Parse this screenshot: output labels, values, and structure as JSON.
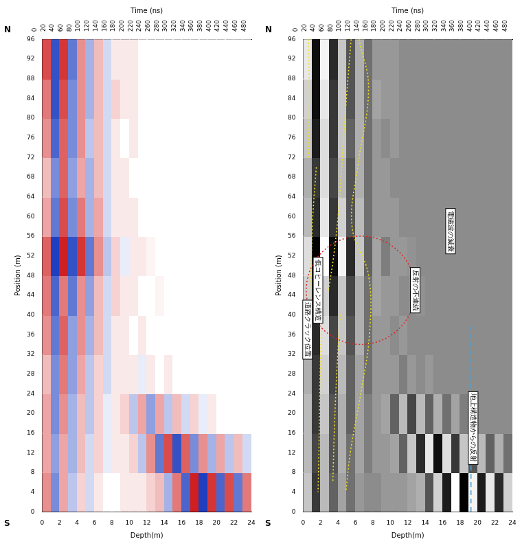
{
  "chart_data": [
    {
      "type": "heatmap",
      "x_label": "Time (ns)",
      "y_label": "Position (m)",
      "x2_label": "Depth(m)",
      "top_left": "N",
      "bottom_left": "S",
      "xlim": [
        0,
        480
      ],
      "xticks": [
        0,
        20,
        40,
        60,
        80,
        100,
        120,
        140,
        160,
        180,
        200,
        220,
        240,
        260,
        280,
        300,
        320,
        340,
        360,
        380,
        400,
        420,
        440,
        460,
        480
      ],
      "x2lim": [
        0,
        24
      ],
      "x2ticks": [
        0,
        2,
        4,
        6,
        8,
        10,
        12,
        14,
        16,
        18,
        20,
        22,
        24
      ],
      "ylim": [
        0,
        96
      ],
      "yticks": [
        0,
        4,
        8,
        12,
        16,
        20,
        24,
        28,
        32,
        36,
        40,
        44,
        48,
        52,
        56,
        60,
        64,
        68,
        72,
        76,
        80,
        84,
        88,
        92,
        96
      ],
      "grid": false,
      "time_edges": [
        0,
        20,
        40,
        60,
        80,
        100,
        120,
        140,
        160,
        180,
        200,
        220,
        240,
        260,
        280,
        300,
        320,
        340,
        360,
        380,
        400,
        420,
        440,
        460,
        480
      ],
      "position_edges": [
        0,
        8,
        16,
        24,
        32,
        40,
        48,
        56,
        64,
        72,
        80,
        88,
        96
      ],
      "color_range": [
        -1,
        1
      ],
      "colors": [
        "#1f3fbf",
        "#ffffff",
        "#d11f1f"
      ],
      "cells": [
        [
          0.5,
          -0.6,
          0.4,
          -0.3,
          0.2,
          -0.2,
          0.1,
          0,
          0,
          0.1,
          0.1,
          0.1,
          0.2,
          0.3,
          -0.4,
          0.6,
          -0.8,
          1,
          -1,
          0.9,
          -0.8,
          0.8,
          -0.7,
          0.6
        ],
        [
          0.4,
          -0.5,
          0.4,
          -0.4,
          0.3,
          -0.2,
          0.2,
          -0.1,
          0.1,
          0.1,
          0.2,
          -0.3,
          0.5,
          -0.7,
          0.8,
          -0.9,
          0.7,
          -0.6,
          0.5,
          -0.4,
          0.4,
          -0.3,
          0.3,
          -0.2
        ],
        [
          0.4,
          -0.6,
          0.5,
          -0.4,
          0.3,
          -0.3,
          0.2,
          -0.1,
          0.1,
          0.2,
          -0.3,
          0.4,
          -0.5,
          0.4,
          -0.3,
          0.3,
          -0.2,
          0.2,
          -0.1,
          0.1,
          0,
          0,
          0,
          0
        ],
        [
          0.3,
          -0.6,
          0.6,
          -0.5,
          0.4,
          -0.3,
          0.2,
          -0.2,
          0.1,
          0.1,
          0.1,
          -0.1,
          0.1,
          0,
          0.1,
          0,
          0,
          0,
          0,
          0,
          0,
          0,
          0,
          0
        ],
        [
          0.5,
          -0.7,
          0.7,
          -0.5,
          0.5,
          -0.4,
          0.3,
          -0.2,
          0.1,
          0.1,
          0,
          0.1,
          0,
          0,
          0,
          0,
          0,
          0,
          0,
          0,
          0,
          0,
          0,
          0
        ],
        [
          0.6,
          -0.8,
          0.6,
          -0.7,
          0.5,
          -0.5,
          0.3,
          -0.2,
          0.2,
          0.1,
          0.1,
          0,
          0,
          0.05,
          0,
          0,
          0,
          0,
          0,
          0,
          0,
          0,
          0,
          0
        ],
        [
          0.7,
          -1,
          1,
          -0.9,
          0.9,
          -0.7,
          0.5,
          -0.3,
          0.2,
          -0.1,
          0.1,
          0.1,
          0.05,
          0,
          0,
          0,
          0,
          0,
          0,
          0,
          0,
          0,
          0,
          0
        ],
        [
          0.4,
          -0.7,
          0.8,
          -0.6,
          0.6,
          -0.4,
          0.4,
          -0.2,
          0.1,
          0.1,
          0.1,
          0,
          0,
          0,
          0,
          0,
          0,
          0,
          0,
          0,
          0,
          0,
          0,
          0
        ],
        [
          0.3,
          -0.6,
          0.7,
          -0.5,
          0.4,
          -0.4,
          0.3,
          -0.2,
          0.1,
          0.1,
          0,
          0,
          0,
          0,
          0,
          0,
          0,
          0,
          0,
          0,
          0,
          0,
          0,
          0
        ],
        [
          0.5,
          -0.8,
          0.7,
          -0.6,
          0.5,
          -0.3,
          0.3,
          -0.2,
          0.1,
          0,
          0.1,
          0,
          0,
          0,
          0,
          0,
          0,
          0,
          0,
          0,
          0,
          0,
          0,
          0
        ],
        [
          0.6,
          -0.9,
          0.8,
          -0.6,
          0.5,
          -0.4,
          0.3,
          -0.2,
          0.2,
          0.1,
          0.1,
          0,
          0,
          0,
          0,
          0,
          0,
          0,
          0,
          0,
          0,
          0,
          0,
          0
        ],
        [
          0.8,
          -0.9,
          0.9,
          -0.7,
          0.5,
          -0.4,
          0.3,
          -0.2,
          0.1,
          0.1,
          0.1,
          0,
          0,
          0,
          0,
          0,
          0,
          0,
          0,
          0,
          0,
          0,
          0,
          0
        ]
      ]
    },
    {
      "type": "heatmap",
      "x_label": "Time (ns)",
      "y_label": "Position (m)",
      "x2_label": "Depth(m)",
      "top_left": "N",
      "bottom_left": "S",
      "xlim": [
        0,
        480
      ],
      "xticks": [
        0,
        20,
        40,
        60,
        80,
        100,
        120,
        140,
        160,
        180,
        200,
        220,
        240,
        260,
        280,
        300,
        320,
        340,
        360,
        380,
        400,
        420,
        440,
        460,
        480
      ],
      "x2lim": [
        0,
        24
      ],
      "x2ticks": [
        0,
        2,
        4,
        6,
        8,
        10,
        12,
        14,
        16,
        18,
        20,
        22,
        24
      ],
      "ylim": [
        0,
        96
      ],
      "yticks": [
        0,
        4,
        8,
        12,
        16,
        20,
        24,
        28,
        32,
        36,
        40,
        44,
        48,
        52,
        56,
        60,
        64,
        68,
        72,
        76,
        80,
        84,
        88,
        92,
        96
      ],
      "grid": false,
      "time_edges": [
        0,
        20,
        40,
        60,
        80,
        100,
        120,
        140,
        160,
        180,
        200,
        220,
        240,
        260,
        280,
        300,
        320,
        340,
        360,
        380,
        400,
        420,
        440,
        460,
        480
      ],
      "position_edges": [
        0,
        8,
        16,
        24,
        32,
        40,
        48,
        56,
        64,
        72,
        80,
        88,
        96
      ],
      "color_range": [
        -1,
        1
      ],
      "colors": [
        "#000000",
        "#8c8c8c",
        "#ffffff"
      ],
      "cells": [
        [
          0.5,
          -0.6,
          0.4,
          -0.3,
          0.2,
          -0.2,
          0.1,
          0,
          0,
          0.1,
          0.1,
          0.1,
          0.2,
          0.3,
          -0.4,
          0.6,
          -0.8,
          1,
          -1,
          0.9,
          -0.8,
          0.8,
          -0.7,
          0.6
        ],
        [
          0.4,
          -0.5,
          0.4,
          -0.4,
          0.3,
          -0.2,
          0.2,
          -0.1,
          0.1,
          0.1,
          0.2,
          -0.3,
          0.5,
          -0.7,
          0.8,
          -0.9,
          0.7,
          -0.6,
          0.5,
          -0.4,
          0.4,
          -0.3,
          0.3,
          -0.2
        ],
        [
          0.4,
          -0.6,
          0.5,
          -0.4,
          0.3,
          -0.3,
          0.2,
          -0.1,
          0.1,
          0.2,
          -0.3,
          0.4,
          -0.5,
          0.4,
          -0.3,
          0.3,
          -0.2,
          0.2,
          -0.1,
          0.1,
          0,
          0,
          0,
          0
        ],
        [
          0.3,
          -0.6,
          0.6,
          -0.5,
          0.4,
          -0.3,
          0.2,
          -0.2,
          0.1,
          0.1,
          0.1,
          -0.1,
          0.1,
          0,
          0.1,
          0,
          0,
          0,
          0,
          0,
          0,
          0,
          0,
          0
        ],
        [
          0.5,
          -0.7,
          0.7,
          -0.5,
          0.5,
          -0.4,
          0.3,
          -0.2,
          0.1,
          0.1,
          0,
          0.1,
          0,
          0,
          0,
          0,
          0,
          0,
          0,
          0,
          0,
          0,
          0,
          0
        ],
        [
          0.6,
          -0.8,
          0.6,
          -0.7,
          0.5,
          -0.5,
          0.3,
          -0.2,
          0.2,
          0.1,
          0.1,
          0,
          0,
          0.05,
          0,
          0,
          0,
          0,
          0,
          0,
          0,
          0,
          0,
          0
        ],
        [
          0.7,
          -1,
          1,
          -0.9,
          0.9,
          -0.7,
          0.5,
          -0.3,
          0.2,
          -0.1,
          0.1,
          0.1,
          0.05,
          0,
          0,
          0,
          0,
          0,
          0,
          0,
          0,
          0,
          0,
          0
        ],
        [
          0.4,
          -0.7,
          0.8,
          -0.6,
          0.6,
          -0.4,
          0.4,
          -0.2,
          0.1,
          0.1,
          0.1,
          0,
          0,
          0,
          0,
          0,
          0,
          0,
          0,
          0,
          0,
          0,
          0,
          0
        ],
        [
          0.3,
          -0.6,
          0.7,
          -0.5,
          0.4,
          -0.4,
          0.3,
          -0.2,
          0.1,
          0.1,
          0,
          0,
          0,
          0,
          0,
          0,
          0,
          0,
          0,
          0,
          0,
          0,
          0,
          0
        ],
        [
          0.5,
          -0.8,
          0.7,
          -0.6,
          0.5,
          -0.3,
          0.3,
          -0.2,
          0.1,
          0,
          0.1,
          0,
          0,
          0,
          0,
          0,
          0,
          0,
          0,
          0,
          0,
          0,
          0,
          0
        ],
        [
          0.6,
          -0.9,
          0.8,
          -0.6,
          0.5,
          -0.4,
          0.3,
          -0.2,
          0.2,
          0.1,
          0.1,
          0,
          0,
          0,
          0,
          0,
          0,
          0,
          0,
          0,
          0,
          0,
          0,
          0
        ],
        [
          0.8,
          -0.9,
          0.9,
          -0.7,
          0.5,
          -0.4,
          0.3,
          -0.2,
          0.1,
          0.1,
          0.1,
          0,
          0,
          0,
          0,
          0,
          0,
          0,
          0,
          0,
          0,
          0,
          0,
          0
        ]
      ],
      "lines": [
        {
          "color": "#f5e11a",
          "line_style": "dotted",
          "points": [
            [
              12,
              96
            ],
            [
              14,
              85
            ],
            [
              12,
              72
            ]
          ]
        },
        {
          "color": "#f5e11a",
          "line_style": "dotted",
          "points": [
            [
              30,
              70
            ],
            [
              22,
              60
            ],
            [
              18,
              50
            ],
            [
              14,
              44
            ]
          ]
        },
        {
          "color": "#f5e11a",
          "line_style": "dotted",
          "points": [
            [
              42,
              39
            ],
            [
              38,
              25
            ],
            [
              36,
              12
            ],
            [
              34,
              4
            ]
          ]
        },
        {
          "color": "#f5e11a",
          "line_style": "dotted",
          "points": [
            [
              110,
              96
            ],
            [
              100,
              85
            ],
            [
              92,
              75
            ],
            [
              82,
              62
            ],
            [
              70,
              52
            ],
            [
              58,
              45
            ]
          ]
        },
        {
          "color": "#f5e11a",
          "line_style": "dotted",
          "points": [
            [
              85,
              40
            ],
            [
              78,
              30
            ],
            [
              72,
              18
            ],
            [
              68,
              6
            ]
          ]
        },
        {
          "color": "#f5e11a",
          "line_style": "dotted",
          "points": [
            [
              128,
              96
            ],
            [
              150,
              86
            ],
            [
              125,
              70
            ],
            [
              112,
              58
            ],
            [
              150,
              48
            ],
            [
              152,
              36
            ],
            [
              132,
              24
            ],
            [
              108,
              12
            ],
            [
              98,
              4
            ]
          ]
        },
        {
          "color": "#4aa3df",
          "line_style": "dashed",
          "points": [
            [
              385,
              0
            ],
            [
              385,
              38
            ]
          ]
        }
      ],
      "circle": {
        "x": 132,
        "y": 45,
        "rx": 125,
        "ry": 11,
        "color": "#e02020",
        "line_style": "dotted"
      },
      "annotations": [
        {
          "text": "電磁波の減衰",
          "x": 338,
          "y": 57
        },
        {
          "text": "反射の不連続",
          "x": 257,
          "y": 45
        },
        {
          "text": "地上構造物からの反射",
          "x": 390,
          "y": 17
        },
        {
          "text": "道路クラック位置",
          "x": 10,
          "y": 37
        },
        {
          "text": "低コヒーレンス構造",
          "x": 34,
          "y": 45
        }
      ]
    }
  ]
}
